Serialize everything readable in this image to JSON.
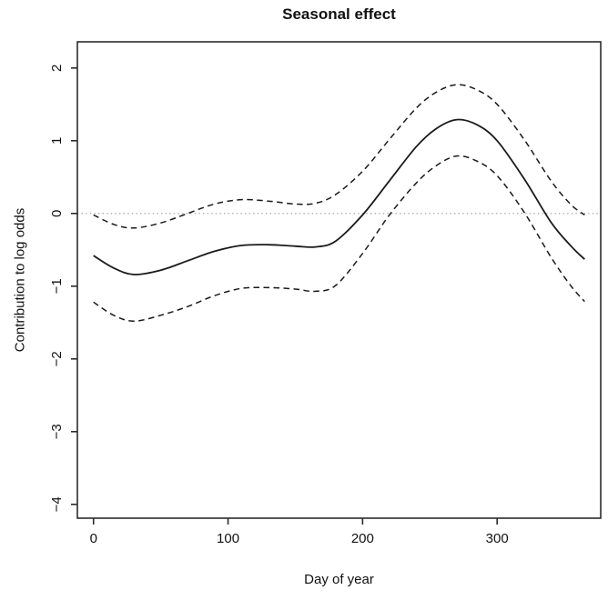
{
  "title": "Seasonal effect",
  "colors": {
    "ink": "#1a1a1a",
    "frame": "#2b2b2b",
    "reference_gray": "#999999",
    "background": "#ffffff"
  },
  "chart_data": {
    "type": "line",
    "title": "Seasonal effect",
    "xlabel": "Day of year",
    "ylabel": "Contribution to log odds",
    "xlim": [
      -12,
      377
    ],
    "ylim": [
      -4.19,
      2.36
    ],
    "grid": false,
    "legend": "none",
    "x_ticks": {
      "values": [
        0,
        100,
        200,
        300
      ],
      "labels": [
        "0",
        "100",
        "200",
        "300"
      ]
    },
    "y_ticks": {
      "values": [
        2,
        1,
        0,
        -1,
        -2,
        -3,
        -4
      ],
      "labels": [
        "2",
        "1",
        "0",
        "−1",
        "−2",
        "−3",
        "−4"
      ]
    },
    "reference_line": {
      "y": 0,
      "style": "dotted",
      "color": "#999999"
    },
    "x": [
      0,
      15,
      30,
      50,
      70,
      90,
      110,
      130,
      150,
      165,
      180,
      200,
      220,
      240,
      255,
      270,
      285,
      300,
      320,
      340,
      355,
      365
    ],
    "series": [
      {
        "name": "estimate",
        "style": "solid",
        "color": "#1a1a1a",
        "values": [
          -0.58,
          -0.75,
          -0.84,
          -0.78,
          -0.65,
          -0.52,
          -0.44,
          -0.43,
          -0.45,
          -0.46,
          -0.38,
          -0.02,
          0.45,
          0.92,
          1.17,
          1.29,
          1.22,
          1.0,
          0.48,
          -0.12,
          -0.45,
          -0.63
        ]
      },
      {
        "name": "upper-ci",
        "style": "dashed",
        "color": "#1a1a1a",
        "values": [
          -0.02,
          -0.15,
          -0.2,
          -0.13,
          0.0,
          0.13,
          0.19,
          0.17,
          0.13,
          0.14,
          0.26,
          0.58,
          1.02,
          1.45,
          1.67,
          1.77,
          1.7,
          1.5,
          1.02,
          0.45,
          0.12,
          -0.02
        ]
      },
      {
        "name": "lower-ci",
        "style": "dashed",
        "color": "#1a1a1a",
        "values": [
          -1.22,
          -1.4,
          -1.48,
          -1.4,
          -1.28,
          -1.13,
          -1.03,
          -1.02,
          -1.04,
          -1.07,
          -0.99,
          -0.55,
          -0.02,
          0.42,
          0.66,
          0.79,
          0.72,
          0.52,
          0.02,
          -0.6,
          -1.0,
          -1.21
        ]
      }
    ]
  }
}
